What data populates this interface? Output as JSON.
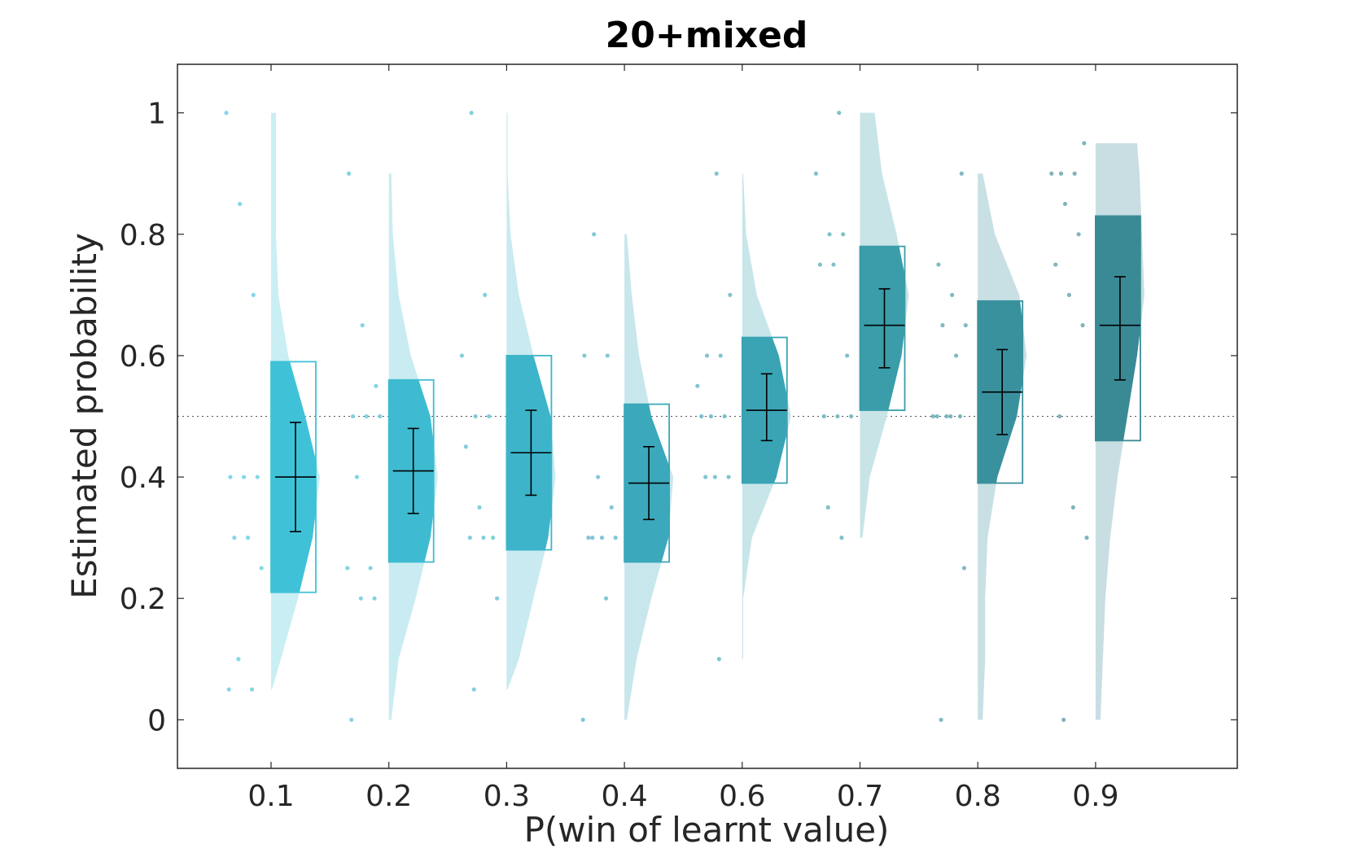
{
  "chart_data": {
    "type": "raincloud",
    "title": "20+mixed",
    "xlabel": "P(win of learnt value)",
    "ylabel": "Estimated probability",
    "categories": [
      "0.1",
      "0.2",
      "0.3",
      "0.4",
      "0.6",
      "0.7",
      "0.8",
      "0.9"
    ],
    "ylim": [
      -0.08,
      1.08
    ],
    "yticks": [
      "0",
      "0.2",
      "0.4",
      "0.6",
      "0.8",
      "1"
    ],
    "reference_line": 0.5,
    "grid": false,
    "groups": [
      {
        "label": "0.1",
        "color": "#3fc2d8",
        "mean": 0.4,
        "ci": [
          0.31,
          0.49
        ],
        "box": [
          0.21,
          0.59
        ],
        "range": [
          0.05,
          1.0
        ],
        "points": [
          1.0,
          0.85,
          0.7,
          0.4,
          0.4,
          0.4,
          0.3,
          0.3,
          0.25,
          0.1,
          0.05,
          0.05
        ],
        "density": [
          [
            0.05,
            0.02
          ],
          [
            0.1,
            0.2
          ],
          [
            0.2,
            0.55
          ],
          [
            0.3,
            0.85
          ],
          [
            0.4,
            1.0
          ],
          [
            0.5,
            0.7
          ],
          [
            0.6,
            0.35
          ],
          [
            0.7,
            0.15
          ],
          [
            0.8,
            0.1
          ],
          [
            0.9,
            0.1
          ],
          [
            1.0,
            0.1
          ]
        ]
      },
      {
        "label": "0.2",
        "color": "#3ebbd1",
        "mean": 0.41,
        "ci": [
          0.34,
          0.48
        ],
        "box": [
          0.26,
          0.56
        ],
        "range": [
          0.0,
          0.9
        ],
        "points": [
          0.9,
          0.65,
          0.55,
          0.5,
          0.5,
          0.5,
          0.4,
          0.25,
          0.25,
          0.2,
          0.2,
          0.0
        ],
        "density": [
          [
            0.0,
            0.05
          ],
          [
            0.1,
            0.2
          ],
          [
            0.2,
            0.55
          ],
          [
            0.3,
            0.85
          ],
          [
            0.4,
            1.0
          ],
          [
            0.5,
            0.85
          ],
          [
            0.6,
            0.45
          ],
          [
            0.7,
            0.2
          ],
          [
            0.8,
            0.08
          ],
          [
            0.9,
            0.05
          ]
        ]
      },
      {
        "label": "0.3",
        "color": "#3db4ca",
        "mean": 0.44,
        "ci": [
          0.37,
          0.51
        ],
        "box": [
          0.28,
          0.6
        ],
        "range": [
          0.05,
          1.0
        ],
        "points": [
          1.0,
          0.7,
          0.6,
          0.5,
          0.5,
          0.45,
          0.35,
          0.3,
          0.3,
          0.3,
          0.2,
          0.05
        ],
        "density": [
          [
            0.05,
            0.02
          ],
          [
            0.1,
            0.25
          ],
          [
            0.2,
            0.55
          ],
          [
            0.3,
            0.85
          ],
          [
            0.4,
            1.0
          ],
          [
            0.5,
            0.9
          ],
          [
            0.6,
            0.55
          ],
          [
            0.7,
            0.25
          ],
          [
            0.8,
            0.08
          ],
          [
            0.9,
            0.02
          ],
          [
            1.0,
            0.02
          ]
        ]
      },
      {
        "label": "0.4",
        "color": "#3ba8bb",
        "mean": 0.39,
        "ci": [
          0.33,
          0.45
        ],
        "box": [
          0.26,
          0.52
        ],
        "range": [
          0.0,
          0.8
        ],
        "points": [
          0.8,
          0.6,
          0.6,
          0.4,
          0.35,
          0.3,
          0.3,
          0.3,
          0.3,
          0.2,
          0.0
        ],
        "density": [
          [
            0.0,
            0.05
          ],
          [
            0.1,
            0.25
          ],
          [
            0.2,
            0.55
          ],
          [
            0.3,
            0.9
          ],
          [
            0.4,
            1.0
          ],
          [
            0.5,
            0.55
          ],
          [
            0.6,
            0.3
          ],
          [
            0.7,
            0.15
          ],
          [
            0.8,
            0.05
          ]
        ]
      },
      {
        "label": "0.6",
        "color": "#3aa4b5",
        "mean": 0.51,
        "ci": [
          0.46,
          0.57
        ],
        "box": [
          0.39,
          0.63
        ],
        "range": [
          0.1,
          0.9
        ],
        "points": [
          0.9,
          0.7,
          0.6,
          0.6,
          0.55,
          0.5,
          0.5,
          0.5,
          0.4,
          0.4,
          0.4,
          0.1
        ],
        "density": [
          [
            0.1,
            0.02
          ],
          [
            0.2,
            0.02
          ],
          [
            0.3,
            0.2
          ],
          [
            0.4,
            0.7
          ],
          [
            0.5,
            1.0
          ],
          [
            0.6,
            0.75
          ],
          [
            0.7,
            0.3
          ],
          [
            0.8,
            0.08
          ],
          [
            0.9,
            0.02
          ]
        ]
      },
      {
        "label": "0.7",
        "color": "#3a9da9",
        "mean": 0.65,
        "ci": [
          0.58,
          0.71
        ],
        "box": [
          0.51,
          0.78
        ],
        "range": [
          0.3,
          1.0
        ],
        "points": [
          1.0,
          0.9,
          0.8,
          0.8,
          0.75,
          0.75,
          0.6,
          0.5,
          0.5,
          0.5,
          0.35,
          0.3
        ],
        "density": [
          [
            0.3,
            0.05
          ],
          [
            0.4,
            0.2
          ],
          [
            0.5,
            0.55
          ],
          [
            0.6,
            0.85
          ],
          [
            0.7,
            1.0
          ],
          [
            0.8,
            0.75
          ],
          [
            0.9,
            0.45
          ],
          [
            1.0,
            0.3
          ]
        ]
      },
      {
        "label": "0.8",
        "color": "#3a919e",
        "mean": 0.54,
        "ci": [
          0.47,
          0.61
        ],
        "box": [
          0.39,
          0.69
        ],
        "range": [
          0.0,
          0.9
        ],
        "points": [
          0.9,
          0.75,
          0.7,
          0.65,
          0.65,
          0.6,
          0.5,
          0.5,
          0.5,
          0.5,
          0.5,
          0.25,
          0.0
        ],
        "density": [
          [
            0.0,
            0.1
          ],
          [
            0.1,
            0.15
          ],
          [
            0.2,
            0.15
          ],
          [
            0.3,
            0.2
          ],
          [
            0.4,
            0.4
          ],
          [
            0.5,
            0.8
          ],
          [
            0.6,
            1.0
          ],
          [
            0.7,
            0.85
          ],
          [
            0.8,
            0.35
          ],
          [
            0.9,
            0.1
          ]
        ]
      },
      {
        "label": "0.9",
        "color": "#3a8a96",
        "mean": 0.65,
        "ci": [
          0.56,
          0.73
        ],
        "box": [
          0.46,
          0.83
        ],
        "range": [
          0.0,
          0.95
        ],
        "points": [
          0.95,
          0.9,
          0.9,
          0.9,
          0.85,
          0.8,
          0.75,
          0.7,
          0.65,
          0.5,
          0.35,
          0.3,
          0.0
        ],
        "density": [
          [
            0.0,
            0.1
          ],
          [
            0.1,
            0.15
          ],
          [
            0.2,
            0.2
          ],
          [
            0.3,
            0.3
          ],
          [
            0.4,
            0.45
          ],
          [
            0.5,
            0.65
          ],
          [
            0.6,
            0.85
          ],
          [
            0.7,
            1.0
          ],
          [
            0.8,
            0.95
          ],
          [
            0.9,
            0.9
          ],
          [
            0.95,
            0.85
          ]
        ]
      }
    ]
  }
}
